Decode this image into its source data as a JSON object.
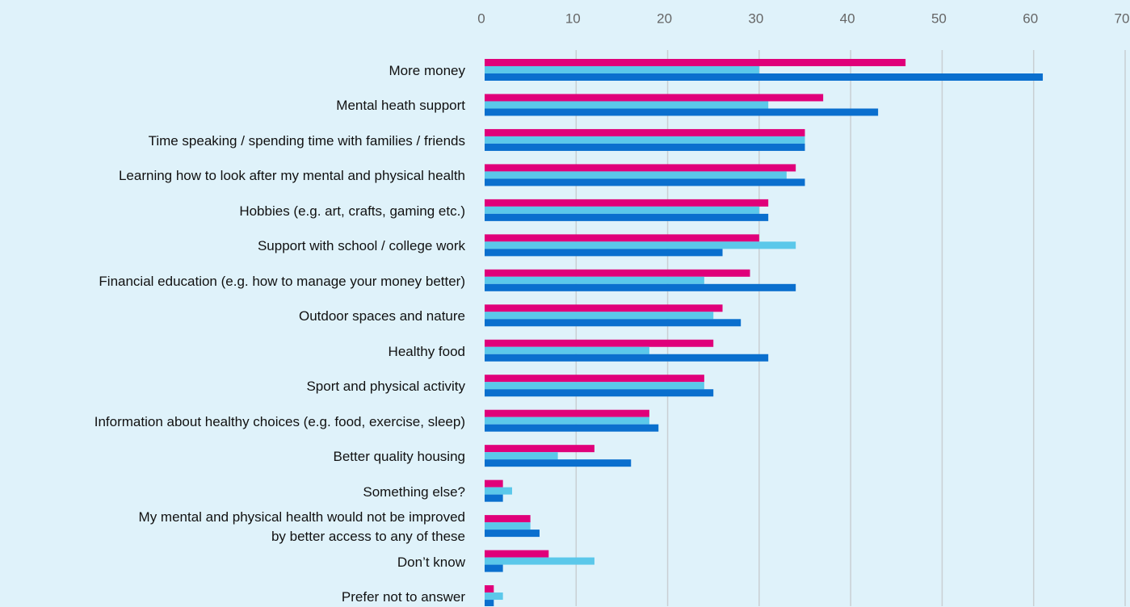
{
  "chart_data": {
    "type": "hbar",
    "categories": [
      "More money",
      "Mental heath support",
      "Time speaking / spending time with families / friends",
      "Learning how to look after my mental and physical health",
      "Hobbies (e.g. art, crafts, gaming etc.)",
      "Support with school / college work",
      "Financial education (e.g. how to manage your money better)",
      "Outdoor spaces and nature",
      "Healthy food",
      "Sport and physical activity",
      "Information about healthy choices (e.g. food, exercise, sleep)",
      "Better quality housing",
      "Something else?",
      "My mental and physical health would not be improved\nby better access to any of these",
      "Don’t know",
      "Prefer not to answer"
    ],
    "series": [
      {
        "color": "#e0007a",
        "values": [
          46,
          37,
          35,
          34,
          31,
          30,
          29,
          26,
          25,
          24,
          18,
          12,
          2,
          5,
          7,
          1
        ]
      },
      {
        "color": "#5bc8ea",
        "values": [
          30,
          31,
          35,
          33,
          30,
          34,
          24,
          25,
          18,
          24,
          18,
          8,
          3,
          5,
          12,
          2
        ]
      },
      {
        "color": "#0a6fce",
        "values": [
          61,
          43,
          35,
          35,
          31,
          26,
          34,
          28,
          31,
          25,
          19,
          16,
          2,
          6,
          2,
          1
        ]
      }
    ],
    "xlim": [
      0,
      70
    ],
    "xticks": [
      0,
      10,
      20,
      30,
      40,
      50,
      60,
      70
    ],
    "grid": true
  }
}
